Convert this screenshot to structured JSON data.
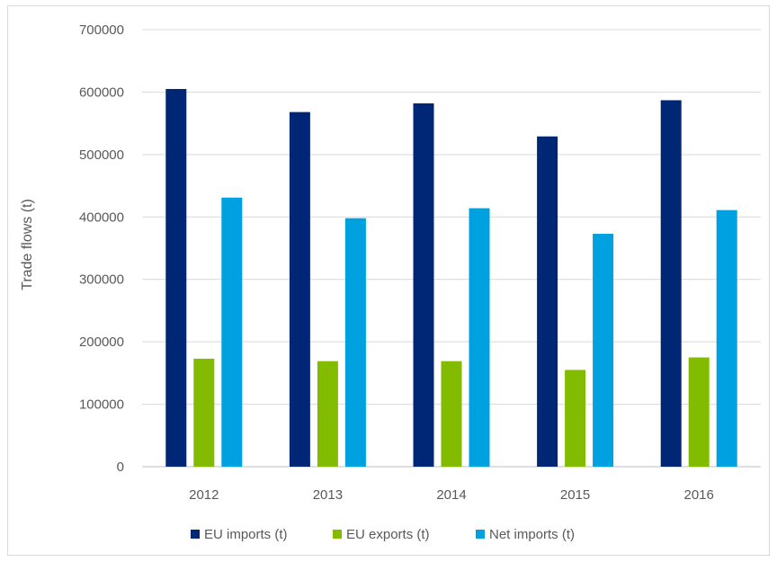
{
  "chart_data": {
    "type": "bar",
    "categories": [
      "2012",
      "2013",
      "2014",
      "2015",
      "2016"
    ],
    "series": [
      {
        "name": "EU imports (t)",
        "color": "#002776",
        "values": [
          605000,
          568000,
          582000,
          529000,
          587000
        ]
      },
      {
        "name": "EU exports (t)",
        "color": "#82bb00",
        "values": [
          173000,
          169000,
          169000,
          155000,
          175000
        ]
      },
      {
        "name": "Net imports (t)",
        "color": "#00a1e1",
        "values": [
          431000,
          398000,
          414000,
          373000,
          411000
        ]
      }
    ],
    "title": "",
    "xlabel": "",
    "ylabel": "Trade flows (t)",
    "ylim": [
      0,
      700000
    ],
    "yticks": [
      "0",
      "100000",
      "200000",
      "300000",
      "400000",
      "500000",
      "600000",
      "700000"
    ],
    "grid": true,
    "legend_position": "bottom"
  }
}
